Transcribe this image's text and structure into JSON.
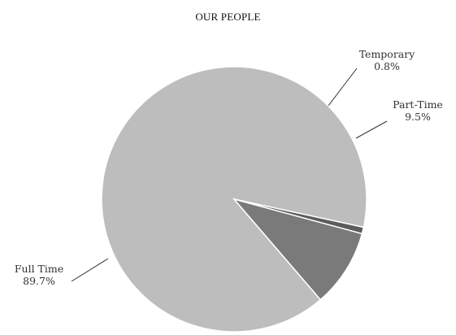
{
  "chart_data": {
    "type": "pie",
    "title": "OUR PEOPLE",
    "slices": [
      {
        "label": "Full Time",
        "value": 89.7,
        "value_label": "89.7%",
        "color": "#bdbdbd"
      },
      {
        "label": "Temporary",
        "value": 0.8,
        "value_label": "0.8%",
        "color": "#5c5c5c"
      },
      {
        "label": "Part-Time",
        "value": 9.5,
        "value_label": "9.5%",
        "color": "#7a7a7a"
      }
    ],
    "legend": "none"
  }
}
